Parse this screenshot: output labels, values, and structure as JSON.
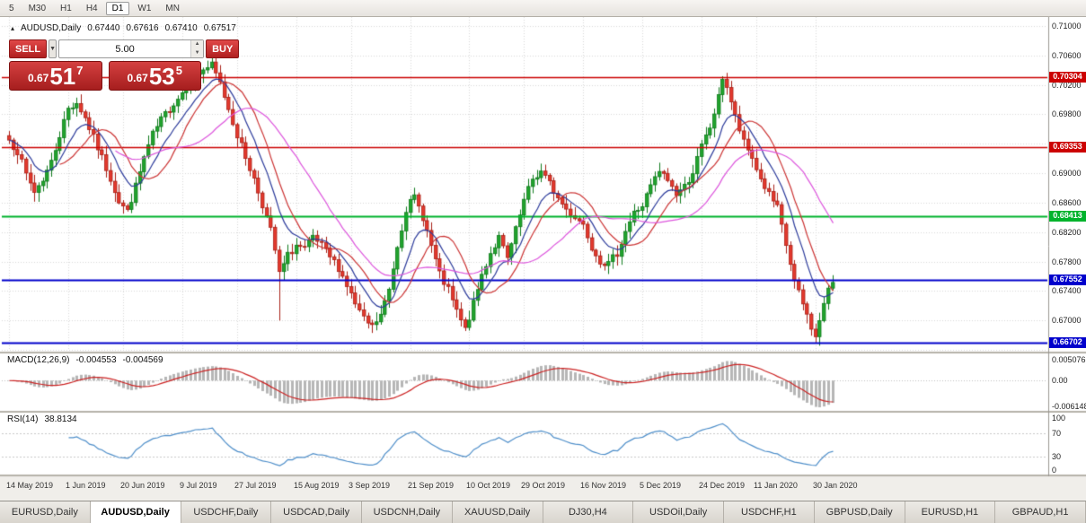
{
  "toolbar": {
    "timeframes": [
      {
        "label": "5"
      },
      {
        "label": "M30"
      },
      {
        "label": "H1"
      },
      {
        "label": "H4"
      },
      {
        "label": "D1",
        "active": true
      },
      {
        "label": "W1"
      },
      {
        "label": "MN"
      }
    ]
  },
  "icons": {
    "dropdown_arrow": "▼",
    "spinner_up": "▲",
    "spinner_down": "▼",
    "symbol_marker": "▴"
  },
  "chart": {
    "symbol_label": "AUDUSD,Daily",
    "open": "0.67440",
    "high": "0.67616",
    "low": "0.67410",
    "close": "0.67517"
  },
  "one_click": {
    "sell_label": "SELL",
    "buy_label": "BUY",
    "volume": "5.00",
    "bid": {
      "small": "0.67",
      "big": "51",
      "sup": "7"
    },
    "ask": {
      "small": "0.67",
      "big": "53",
      "sup": "5"
    }
  },
  "indicators": {
    "macd": {
      "label": "MACD(12,26,9)",
      "value1": "-0.004553",
      "value2": "-0.004569",
      "axis": [
        "0.005076",
        "0.00",
        "-0.006148"
      ]
    },
    "rsi": {
      "label": "RSI(14)",
      "value": "38.8134",
      "axis": [
        "100",
        "70",
        "30",
        "0"
      ]
    }
  },
  "price_axis": {
    "labels": [
      {
        "text": "0.71000",
        "price": 0.71
      },
      {
        "text": "0.70600",
        "price": 0.706
      },
      {
        "text": "0.70200",
        "price": 0.702
      },
      {
        "text": "0.69800",
        "price": 0.698
      },
      {
        "text": "0.69000",
        "price": 0.69
      },
      {
        "text": "0.68600",
        "price": 0.686
      },
      {
        "text": "0.68200",
        "price": 0.682
      },
      {
        "text": "0.67800",
        "price": 0.678
      },
      {
        "text": "0.67400",
        "price": 0.674
      },
      {
        "text": "0.67000",
        "price": 0.67
      }
    ]
  },
  "date_axis": [
    {
      "text": "14 May 2019",
      "bar": 0
    },
    {
      "text": "1 Jun 2019",
      "bar": 14
    },
    {
      "text": "20 Jun 2019",
      "bar": 27
    },
    {
      "text": "9 Jul 2019",
      "bar": 41
    },
    {
      "text": "27 Jul 2019",
      "bar": 54
    },
    {
      "text": "15 Aug 2019",
      "bar": 68
    },
    {
      "text": "3 Sep 2019",
      "bar": 81
    },
    {
      "text": "21 Sep 2019",
      "bar": 95
    },
    {
      "text": "10 Oct 2019",
      "bar": 109
    },
    {
      "text": "29 Oct 2019",
      "bar": 122
    },
    {
      "text": "16 Nov 2019",
      "bar": 136
    },
    {
      "text": "5 Dec 2019",
      "bar": 150
    },
    {
      "text": "24 Dec 2019",
      "bar": 164
    },
    {
      "text": "11 Jan 2020",
      "bar": 177
    },
    {
      "text": "30 Jan 2020",
      "bar": 191
    }
  ],
  "tabs": {
    "active_index": 1,
    "items": [
      {
        "label": "EURUSD,Daily"
      },
      {
        "label": "AUDUSD,Daily"
      },
      {
        "label": "USDCHF,Daily"
      },
      {
        "label": "USDCAD,Daily"
      },
      {
        "label": "USDCNH,Daily"
      },
      {
        "label": "XAUUSD,Daily"
      },
      {
        "label": "DJ30,H4"
      },
      {
        "label": "USDOil,Daily"
      },
      {
        "label": "USDCHF,H1"
      },
      {
        "label": "GBPUSD,Daily"
      },
      {
        "label": "EURUSD,H1"
      },
      {
        "label": "GBPAUD,H1"
      }
    ]
  },
  "colors": {
    "up": "#22a42e",
    "up_border": "#0e7a1b",
    "down": "#e3392e",
    "down_border": "#a81f16",
    "grid": "#d9d9d9",
    "panel_red": "#c22a2a"
  },
  "chart_data": {
    "type": "candlestick",
    "symbol": "AUDUSD",
    "timeframe": "Daily",
    "bars": 196,
    "price_range": [
      0.6659,
      0.7112
    ],
    "last_bar": {
      "open": 0.6744,
      "high": 0.67616,
      "low": 0.6741,
      "close": 0.67517
    },
    "price_waypoints": [
      [
        0,
        0.6945
      ],
      [
        2,
        0.693
      ],
      [
        4,
        0.6898
      ],
      [
        6,
        0.6875
      ],
      [
        8,
        0.6892
      ],
      [
        10,
        0.6915
      ],
      [
        12,
        0.6952
      ],
      [
        14,
        0.6988
      ],
      [
        16,
        0.6996
      ],
      [
        18,
        0.6975
      ],
      [
        20,
        0.6948
      ],
      [
        22,
        0.6921
      ],
      [
        24,
        0.6893
      ],
      [
        26,
        0.6862
      ],
      [
        28,
        0.6848
      ],
      [
        30,
        0.6882
      ],
      [
        32,
        0.6921
      ],
      [
        34,
        0.6952
      ],
      [
        36,
        0.6972
      ],
      [
        38,
        0.6988
      ],
      [
        40,
        0.7002
      ],
      [
        42,
        0.7018
      ],
      [
        44,
        0.7032
      ],
      [
        46,
        0.7041
      ],
      [
        48,
        0.7046
      ],
      [
        50,
        0.7022
      ],
      [
        52,
        0.6988
      ],
      [
        54,
        0.6952
      ],
      [
        56,
        0.6922
      ],
      [
        58,
        0.6892
      ],
      [
        60,
        0.6858
      ],
      [
        62,
        0.6822
      ],
      [
        63,
        0.6795
      ],
      [
        64,
        0.6763
      ],
      [
        66,
        0.6788
      ],
      [
        68,
        0.6802
      ],
      [
        70,
        0.6796
      ],
      [
        72,
        0.6812
      ],
      [
        74,
        0.6801
      ],
      [
        76,
        0.6786
      ],
      [
        78,
        0.6772
      ],
      [
        80,
        0.6748
      ],
      [
        82,
        0.6722
      ],
      [
        84,
        0.6701
      ],
      [
        86,
        0.6691
      ],
      [
        88,
        0.6707
      ],
      [
        90,
        0.6742
      ],
      [
        92,
        0.6802
      ],
      [
        94,
        0.6852
      ],
      [
        96,
        0.6867
      ],
      [
        98,
        0.6841
      ],
      [
        100,
        0.6801
      ],
      [
        102,
        0.6762
      ],
      [
        104,
        0.6741
      ],
      [
        106,
        0.6712
      ],
      [
        108,
        0.6687
      ],
      [
        110,
        0.6722
      ],
      [
        112,
        0.6762
      ],
      [
        114,
        0.6792
      ],
      [
        116,
        0.6812
      ],
      [
        118,
        0.6783
      ],
      [
        120,
        0.6822
      ],
      [
        122,
        0.6862
      ],
      [
        124,
        0.6892
      ],
      [
        126,
        0.6902
      ],
      [
        128,
        0.6886
      ],
      [
        130,
        0.6866
      ],
      [
        132,
        0.6851
      ],
      [
        134,
        0.6841
      ],
      [
        136,
        0.6831
      ],
      [
        138,
        0.6801
      ],
      [
        140,
        0.6782
      ],
      [
        142,
        0.6776
      ],
      [
        144,
        0.6792
      ],
      [
        146,
        0.6822
      ],
      [
        148,
        0.6846
      ],
      [
        150,
        0.6856
      ],
      [
        152,
        0.6882
      ],
      [
        154,
        0.6902
      ],
      [
        156,
        0.6891
      ],
      [
        158,
        0.6872
      ],
      [
        160,
        0.6882
      ],
      [
        162,
        0.6902
      ],
      [
        164,
        0.6936
      ],
      [
        166,
        0.6962
      ],
      [
        168,
        0.7002
      ],
      [
        169,
        0.703
      ],
      [
        170,
        0.7018
      ],
      [
        172,
        0.6976
      ],
      [
        174,
        0.6941
      ],
      [
        176,
        0.6921
      ],
      [
        178,
        0.6892
      ],
      [
        180,
        0.6871
      ],
      [
        182,
        0.6852
      ],
      [
        184,
        0.6802
      ],
      [
        186,
        0.6752
      ],
      [
        188,
        0.6722
      ],
      [
        190,
        0.6692
      ],
      [
        191,
        0.6676
      ],
      [
        192,
        0.6701
      ],
      [
        193,
        0.6722
      ],
      [
        194,
        0.6744
      ],
      [
        195,
        0.67517
      ]
    ],
    "special_wicks": [
      {
        "bar": 64,
        "low": 0.67
      },
      {
        "bar": 169,
        "high": 0.70317
      },
      {
        "bar": 191,
        "low": 0.667
      }
    ],
    "horizontal_lines": [
      {
        "price": 0.70304,
        "label": "0.70304",
        "color": "#cc0000",
        "width": 1.5
      },
      {
        "price": 0.69353,
        "label": "0.69353",
        "color": "#cc0000",
        "width": 1.5
      },
      {
        "price": 0.68413,
        "label": "0.68413",
        "color": "#00b32c",
        "width": 2
      },
      {
        "price": 0.67552,
        "label": "0.67552",
        "color": "#0000cc",
        "width": 2
      },
      {
        "price": 0.66702,
        "label": "0.66702",
        "color": "#0000cc",
        "width": 2
      }
    ],
    "moving_averages": [
      {
        "kind": "ema",
        "period": 9,
        "color": "#2b3a9b"
      },
      {
        "kind": "sma",
        "period": 13,
        "color": "#cc3333"
      },
      {
        "kind": "sma",
        "period": 26,
        "color": "#dd55dd"
      }
    ],
    "macd": {
      "fast": 12,
      "slow": 26,
      "signal": 9,
      "hist_color": "#b6b6b6",
      "signal_color": "#cc2222",
      "axis_max": 0.005076,
      "axis_min": -0.006148
    },
    "rsi": {
      "period": 14,
      "color": "#4f8fca",
      "levels": [
        70,
        30
      ]
    },
    "grid": {
      "h_step": 0.004
    }
  }
}
